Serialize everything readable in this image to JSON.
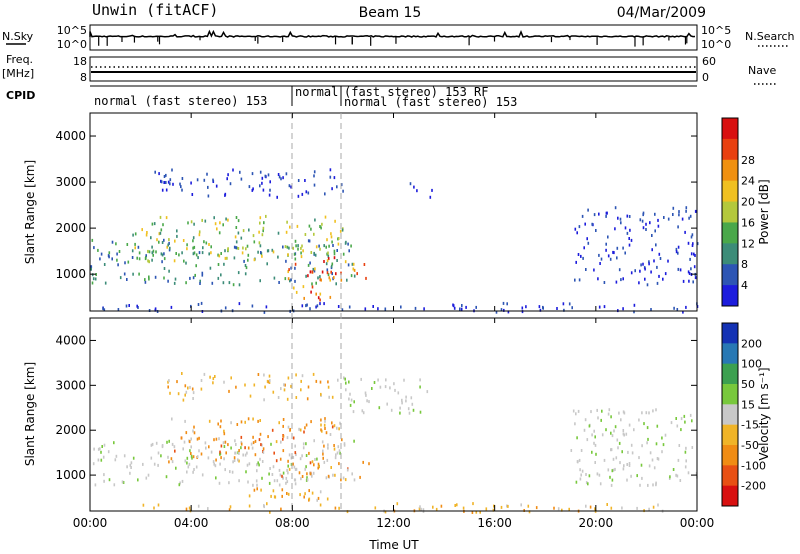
{
  "header": {
    "station": "Unwin (fitACF)",
    "beam": "Beam 15",
    "date": "04/Mar/2009"
  },
  "strip_top": {
    "left_label": "N.Sky",
    "tick_hi": "10^5",
    "tick_lo": "10^0",
    "right_label": "N.Search",
    "right_hi": "10^5",
    "right_lo": "10^0"
  },
  "strip_freq": {
    "left_label": "Freq.",
    "left_unit": "[MHz]",
    "tick_hi": "18",
    "tick_lo": "8",
    "right_label": "Nave",
    "right_hi": "60",
    "right_lo": "0"
  },
  "cpid": {
    "label": "CPID",
    "segments": [
      "normal (fast stereo) 153",
      "normal",
      "(fast stereo) 153 RF",
      "normal (fast stereo) 153"
    ]
  },
  "x_axis": {
    "label": "Time UT",
    "ticks": [
      "00:00",
      "04:00",
      "08:00",
      "12:00",
      "16:00",
      "20:00",
      "00:00"
    ]
  },
  "chart_data": [
    {
      "type": "heatmap",
      "panel": "power",
      "ylabel": "Slant Range [km]",
      "yticks": [
        "1000",
        "2000",
        "3000",
        "4000"
      ],
      "ylim": [
        200,
        4500
      ],
      "xlim_hours": [
        0,
        24
      ],
      "colorbar": {
        "label": "Power [dB]",
        "ticks": [
          "4",
          "8",
          "12",
          "16",
          "20",
          "24",
          "28"
        ],
        "colors": [
          "#1c1cdc",
          "#2d55b4",
          "#3c8c78",
          "#4aa84a",
          "#b4c83c",
          "#f0c020",
          "#f09010",
          "#e84010",
          "#d81010"
        ]
      },
      "regions": [
        {
          "t0": 0.0,
          "t1": 10.5,
          "r0": 800,
          "r1": 1800,
          "level": "mid"
        },
        {
          "t0": 1.5,
          "t1": 10.0,
          "r0": 1300,
          "r1": 2300,
          "level": "high"
        },
        {
          "t0": 2.5,
          "t1": 10.0,
          "r0": 2700,
          "r1": 3300,
          "level": "low"
        },
        {
          "t0": 7.5,
          "t1": 11.0,
          "r0": 900,
          "r1": 1400,
          "level": "peak"
        },
        {
          "t0": 8.0,
          "t1": 9.5,
          "r0": 450,
          "r1": 800,
          "level": "peak"
        },
        {
          "t0": 12.5,
          "t1": 13.5,
          "r0": 2500,
          "r1": 3000,
          "level": "low"
        },
        {
          "t0": 19.0,
          "t1": 24.0,
          "r0": 800,
          "r1": 2500,
          "level": "low"
        },
        {
          "t0": 0.0,
          "t1": 24.0,
          "r0": 200,
          "r1": 400,
          "level": "low"
        }
      ]
    },
    {
      "type": "heatmap",
      "panel": "velocity",
      "ylabel": "Slant Range [km]",
      "yticks": [
        "1000",
        "2000",
        "3000",
        "4000"
      ],
      "ylim": [
        200,
        4500
      ],
      "xlim_hours": [
        0,
        24
      ],
      "colorbar": {
        "label": "Velocity [m s⁻¹]",
        "ticks": [
          "200",
          "100",
          "50",
          "15",
          "-15",
          "-50",
          "-100",
          "-200"
        ],
        "colors": [
          "#1432b4",
          "#2878b4",
          "#3ca050",
          "#78c83c",
          "#c8c8c8",
          "#f0b428",
          "#f08c14",
          "#e85014",
          "#d81010"
        ]
      },
      "regions": [
        {
          "t0": 0.0,
          "t1": 10.5,
          "r0": 800,
          "r1": 1800,
          "level": "zero"
        },
        {
          "t0": 3.0,
          "t1": 10.0,
          "r0": 1300,
          "r1": 2300,
          "level": "neg"
        },
        {
          "t0": 3.0,
          "t1": 10.0,
          "r0": 2700,
          "r1": 3300,
          "level": "negsmall"
        },
        {
          "t0": 7.5,
          "t1": 11.0,
          "r0": 900,
          "r1": 1400,
          "level": "neg"
        },
        {
          "t0": 6.0,
          "t1": 9.5,
          "r0": 450,
          "r1": 800,
          "level": "negsmall"
        },
        {
          "t0": 10.0,
          "t1": 13.5,
          "r0": 2400,
          "r1": 3200,
          "level": "zero"
        },
        {
          "t0": 19.0,
          "t1": 24.0,
          "r0": 800,
          "r1": 2500,
          "level": "zero"
        },
        {
          "t0": 2.0,
          "t1": 24.0,
          "r0": 200,
          "r1": 400,
          "level": "negsmall"
        }
      ]
    }
  ]
}
